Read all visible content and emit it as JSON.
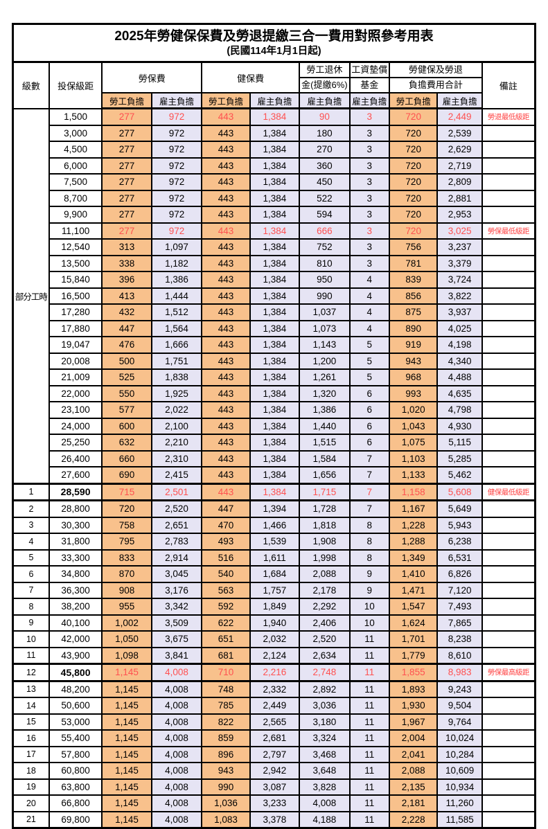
{
  "title": "2025年勞健保保費及勞退提繳三合一費用對照參考用表",
  "subtitle": "(民國114年1月1日起)",
  "colors": {
    "employee_col_bg": "#F8C18C",
    "employer_col_bg": "#E6E4F4",
    "highlight_text": "#FF5050",
    "remark_text": "#FF4444",
    "border": "#000000"
  },
  "header": {
    "level": "級數",
    "bracket": "投保級距",
    "labor_fee": "勞保費",
    "health_fee": "健保費",
    "pension_line1": "勞工退休",
    "pension_line2": "金(提繳6%)",
    "wage_fund_line1": "工資墊償",
    "wage_fund_line2": "基金",
    "total_line1": "勞健保及勞退",
    "total_line2": "負擔費用合計",
    "remark": "備註",
    "employee_share": "勞工負擔",
    "employer_share": "雇主負擔"
  },
  "part_time": {
    "label": "部分工時",
    "rowspan": 23
  },
  "chart_data": {
    "type": "table",
    "title": "2025年勞健保保費及勞退提繳三合一費用對照參考用表",
    "columns": [
      "級數",
      "投保級距",
      "勞保費-勞工負擔",
      "勞保費-雇主負擔",
      "健保費-勞工負擔",
      "健保費-雇主負擔",
      "勞工退休金(提繳6%)-雇主負擔",
      "工資墊償基金-雇主負擔",
      "合計-勞工負擔",
      "合計-雇主負擔",
      "備註"
    ]
  },
  "rows": [
    {
      "level": "",
      "bracket": "1,500",
      "values": [
        "277",
        "972",
        "443",
        "1,384",
        "90",
        "3",
        "720",
        "2,449"
      ],
      "remark": "勞退最低級距",
      "red": true,
      "bold": false,
      "thick": false
    },
    {
      "level": "",
      "bracket": "3,000",
      "values": [
        "277",
        "972",
        "443",
        "1,384",
        "180",
        "3",
        "720",
        "2,539"
      ],
      "remark": "",
      "red": false,
      "bold": false,
      "thick": false
    },
    {
      "level": "",
      "bracket": "4,500",
      "values": [
        "277",
        "972",
        "443",
        "1,384",
        "270",
        "3",
        "720",
        "2,629"
      ],
      "remark": "",
      "red": false,
      "bold": false,
      "thick": false
    },
    {
      "level": "",
      "bracket": "6,000",
      "values": [
        "277",
        "972",
        "443",
        "1,384",
        "360",
        "3",
        "720",
        "2,719"
      ],
      "remark": "",
      "red": false,
      "bold": false,
      "thick": false
    },
    {
      "level": "",
      "bracket": "7,500",
      "values": [
        "277",
        "972",
        "443",
        "1,384",
        "450",
        "3",
        "720",
        "2,809"
      ],
      "remark": "",
      "red": false,
      "bold": false,
      "thick": false
    },
    {
      "level": "",
      "bracket": "8,700",
      "values": [
        "277",
        "972",
        "443",
        "1,384",
        "522",
        "3",
        "720",
        "2,881"
      ],
      "remark": "",
      "red": false,
      "bold": false,
      "thick": false
    },
    {
      "level": "",
      "bracket": "9,900",
      "values": [
        "277",
        "972",
        "443",
        "1,384",
        "594",
        "3",
        "720",
        "2,953"
      ],
      "remark": "",
      "red": false,
      "bold": false,
      "thick": false
    },
    {
      "level": "",
      "bracket": "11,100",
      "values": [
        "277",
        "972",
        "443",
        "1,384",
        "666",
        "3",
        "720",
        "3,025"
      ],
      "remark": "勞保最低級距",
      "red": true,
      "bold": false,
      "thick": false
    },
    {
      "level": "",
      "bracket": "12,540",
      "values": [
        "313",
        "1,097",
        "443",
        "1,384",
        "752",
        "3",
        "756",
        "3,237"
      ],
      "remark": "",
      "red": false,
      "bold": false,
      "thick": false
    },
    {
      "level": "",
      "bracket": "13,500",
      "values": [
        "338",
        "1,182",
        "443",
        "1,384",
        "810",
        "3",
        "781",
        "3,379"
      ],
      "remark": "",
      "red": false,
      "bold": false,
      "thick": false
    },
    {
      "level": "",
      "bracket": "15,840",
      "values": [
        "396",
        "1,386",
        "443",
        "1,384",
        "950",
        "4",
        "839",
        "3,724"
      ],
      "remark": "",
      "red": false,
      "bold": false,
      "thick": false
    },
    {
      "level": "",
      "bracket": "16,500",
      "values": [
        "413",
        "1,444",
        "443",
        "1,384",
        "990",
        "4",
        "856",
        "3,822"
      ],
      "remark": "",
      "red": false,
      "bold": false,
      "thick": false
    },
    {
      "level": "",
      "bracket": "17,280",
      "values": [
        "432",
        "1,512",
        "443",
        "1,384",
        "1,037",
        "4",
        "875",
        "3,937"
      ],
      "remark": "",
      "red": false,
      "bold": false,
      "thick": false
    },
    {
      "level": "",
      "bracket": "17,880",
      "values": [
        "447",
        "1,564",
        "443",
        "1,384",
        "1,073",
        "4",
        "890",
        "4,025"
      ],
      "remark": "",
      "red": false,
      "bold": false,
      "thick": false
    },
    {
      "level": "",
      "bracket": "19,047",
      "values": [
        "476",
        "1,666",
        "443",
        "1,384",
        "1,143",
        "5",
        "919",
        "4,198"
      ],
      "remark": "",
      "red": false,
      "bold": false,
      "thick": false
    },
    {
      "level": "",
      "bracket": "20,008",
      "values": [
        "500",
        "1,751",
        "443",
        "1,384",
        "1,200",
        "5",
        "943",
        "4,340"
      ],
      "remark": "",
      "red": false,
      "bold": false,
      "thick": false
    },
    {
      "level": "",
      "bracket": "21,009",
      "values": [
        "525",
        "1,838",
        "443",
        "1,384",
        "1,261",
        "5",
        "968",
        "4,488"
      ],
      "remark": "",
      "red": false,
      "bold": false,
      "thick": false
    },
    {
      "level": "",
      "bracket": "22,000",
      "values": [
        "550",
        "1,925",
        "443",
        "1,384",
        "1,320",
        "6",
        "993",
        "4,635"
      ],
      "remark": "",
      "red": false,
      "bold": false,
      "thick": false
    },
    {
      "level": "",
      "bracket": "23,100",
      "values": [
        "577",
        "2,022",
        "443",
        "1,384",
        "1,386",
        "6",
        "1,020",
        "4,798"
      ],
      "remark": "",
      "red": false,
      "bold": false,
      "thick": false
    },
    {
      "level": "",
      "bracket": "24,000",
      "values": [
        "600",
        "2,100",
        "443",
        "1,384",
        "1,440",
        "6",
        "1,043",
        "4,930"
      ],
      "remark": "",
      "red": false,
      "bold": false,
      "thick": false
    },
    {
      "level": "",
      "bracket": "25,250",
      "values": [
        "632",
        "2,210",
        "443",
        "1,384",
        "1,515",
        "6",
        "1,075",
        "5,115"
      ],
      "remark": "",
      "red": false,
      "bold": false,
      "thick": false
    },
    {
      "level": "",
      "bracket": "26,400",
      "values": [
        "660",
        "2,310",
        "443",
        "1,384",
        "1,584",
        "7",
        "1,103",
        "5,285"
      ],
      "remark": "",
      "red": false,
      "bold": false,
      "thick": false
    },
    {
      "level": "",
      "bracket": "27,600",
      "values": [
        "690",
        "2,415",
        "443",
        "1,384",
        "1,656",
        "7",
        "1,133",
        "5,462"
      ],
      "remark": "",
      "red": false,
      "bold": false,
      "thick": false
    },
    {
      "level": "1",
      "bracket": "28,590",
      "values": [
        "715",
        "2,501",
        "443",
        "1,384",
        "1,715",
        "7",
        "1,158",
        "5,608"
      ],
      "remark": "健保最低級距",
      "red": true,
      "bold": true,
      "thick": true
    },
    {
      "level": "2",
      "bracket": "28,800",
      "values": [
        "720",
        "2,520",
        "447",
        "1,394",
        "1,728",
        "7",
        "1,167",
        "5,649"
      ],
      "remark": "",
      "red": false,
      "bold": false,
      "thick": false
    },
    {
      "level": "3",
      "bracket": "30,300",
      "values": [
        "758",
        "2,651",
        "470",
        "1,466",
        "1,818",
        "8",
        "1,228",
        "5,943"
      ],
      "remark": "",
      "red": false,
      "bold": false,
      "thick": false
    },
    {
      "level": "4",
      "bracket": "31,800",
      "values": [
        "795",
        "2,783",
        "493",
        "1,539",
        "1,908",
        "8",
        "1,288",
        "6,238"
      ],
      "remark": "",
      "red": false,
      "bold": false,
      "thick": false
    },
    {
      "level": "5",
      "bracket": "33,300",
      "values": [
        "833",
        "2,914",
        "516",
        "1,611",
        "1,998",
        "8",
        "1,349",
        "6,531"
      ],
      "remark": "",
      "red": false,
      "bold": false,
      "thick": false
    },
    {
      "level": "6",
      "bracket": "34,800",
      "values": [
        "870",
        "3,045",
        "540",
        "1,684",
        "2,088",
        "9",
        "1,410",
        "6,826"
      ],
      "remark": "",
      "red": false,
      "bold": false,
      "thick": false
    },
    {
      "level": "7",
      "bracket": "36,300",
      "values": [
        "908",
        "3,176",
        "563",
        "1,757",
        "2,178",
        "9",
        "1,471",
        "7,120"
      ],
      "remark": "",
      "red": false,
      "bold": false,
      "thick": false
    },
    {
      "level": "8",
      "bracket": "38,200",
      "values": [
        "955",
        "3,342",
        "592",
        "1,849",
        "2,292",
        "10",
        "1,547",
        "7,493"
      ],
      "remark": "",
      "red": false,
      "bold": false,
      "thick": false
    },
    {
      "level": "9",
      "bracket": "40,100",
      "values": [
        "1,002",
        "3,509",
        "622",
        "1,940",
        "2,406",
        "10",
        "1,624",
        "7,865"
      ],
      "remark": "",
      "red": false,
      "bold": false,
      "thick": false
    },
    {
      "level": "10",
      "bracket": "42,000",
      "values": [
        "1,050",
        "3,675",
        "651",
        "2,032",
        "2,520",
        "11",
        "1,701",
        "8,238"
      ],
      "remark": "",
      "red": false,
      "bold": false,
      "thick": false
    },
    {
      "level": "11",
      "bracket": "43,900",
      "values": [
        "1,098",
        "3,841",
        "681",
        "2,124",
        "2,634",
        "11",
        "1,779",
        "8,610"
      ],
      "remark": "",
      "red": false,
      "bold": false,
      "thick": false
    },
    {
      "level": "12",
      "bracket": "45,800",
      "values": [
        "1,145",
        "4,008",
        "710",
        "2,216",
        "2,748",
        "11",
        "1,855",
        "8,983"
      ],
      "remark": "勞保最高級距",
      "red": true,
      "bold": true,
      "thick": true
    },
    {
      "level": "13",
      "bracket": "48,200",
      "values": [
        "1,145",
        "4,008",
        "748",
        "2,332",
        "2,892",
        "11",
        "1,893",
        "9,243"
      ],
      "remark": "",
      "red": false,
      "bold": false,
      "thick": false
    },
    {
      "level": "14",
      "bracket": "50,600",
      "values": [
        "1,145",
        "4,008",
        "785",
        "2,449",
        "3,036",
        "11",
        "1,930",
        "9,504"
      ],
      "remark": "",
      "red": false,
      "bold": false,
      "thick": false
    },
    {
      "level": "15",
      "bracket": "53,000",
      "values": [
        "1,145",
        "4,008",
        "822",
        "2,565",
        "3,180",
        "11",
        "1,967",
        "9,764"
      ],
      "remark": "",
      "red": false,
      "bold": false,
      "thick": false
    },
    {
      "level": "16",
      "bracket": "55,400",
      "values": [
        "1,145",
        "4,008",
        "859",
        "2,681",
        "3,324",
        "11",
        "2,004",
        "10,024"
      ],
      "remark": "",
      "red": false,
      "bold": false,
      "thick": false
    },
    {
      "level": "17",
      "bracket": "57,800",
      "values": [
        "1,145",
        "4,008",
        "896",
        "2,797",
        "3,468",
        "11",
        "2,041",
        "10,284"
      ],
      "remark": "",
      "red": false,
      "bold": false,
      "thick": false
    },
    {
      "level": "18",
      "bracket": "60,800",
      "values": [
        "1,145",
        "4,008",
        "943",
        "2,942",
        "3,648",
        "11",
        "2,088",
        "10,609"
      ],
      "remark": "",
      "red": false,
      "bold": false,
      "thick": false
    },
    {
      "level": "19",
      "bracket": "63,800",
      "values": [
        "1,145",
        "4,008",
        "990",
        "3,087",
        "3,828",
        "11",
        "2,135",
        "10,934"
      ],
      "remark": "",
      "red": false,
      "bold": false,
      "thick": false
    },
    {
      "level": "20",
      "bracket": "66,800",
      "values": [
        "1,145",
        "4,008",
        "1,036",
        "3,233",
        "4,008",
        "11",
        "2,181",
        "11,260"
      ],
      "remark": "",
      "red": false,
      "bold": false,
      "thick": false
    },
    {
      "level": "21",
      "bracket": "69,800",
      "values": [
        "1,145",
        "4,008",
        "1,083",
        "3,378",
        "4,188",
        "11",
        "2,228",
        "11,585"
      ],
      "remark": "",
      "red": false,
      "bold": false,
      "thick": false
    }
  ]
}
